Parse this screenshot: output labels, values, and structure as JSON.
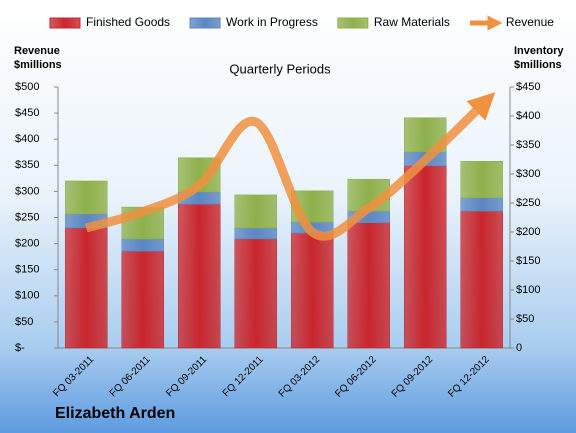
{
  "chart_data": {
    "type": "bar",
    "stacked": true,
    "title": "Quarterly Periods",
    "brand": "Elizabeth Arden",
    "ylabel": "Revenue $millions",
    "y2label": "Inventory $millions",
    "categories": [
      "FQ 03-2011",
      "FQ 06-2011",
      "FQ 09-2011",
      "FQ 12-2011",
      "FQ 03-2012",
      "FQ 06-2012",
      "FQ 09-2012",
      "FQ 12-2012"
    ],
    "series": [
      {
        "name": "Finished Goods",
        "color": "#c8262c",
        "axis": "y2",
        "values": [
          207,
          167,
          248,
          188,
          198,
          216,
          314,
          236
        ]
      },
      {
        "name": "Work in Progress",
        "color": "#5b86c2",
        "axis": "y2",
        "values": [
          24,
          21,
          21,
          19,
          19,
          20,
          24,
          23
        ]
      },
      {
        "name": "Raw Materials",
        "color": "#8eb04a",
        "axis": "y2",
        "values": [
          57,
          55,
          59,
          57,
          54,
          55,
          59,
          63
        ]
      },
      {
        "name": "Revenue",
        "color": "#f0913f",
        "axis": "y",
        "type": "line",
        "values": [
          230,
          261,
          312,
          433,
          222,
          268,
          360,
          465
        ]
      }
    ],
    "ylim": [
      0,
      500
    ],
    "yticks": [
      {
        "value": 0,
        "label": "$-"
      },
      {
        "value": 50,
        "label": "$50"
      },
      {
        "value": 100,
        "label": "$100"
      },
      {
        "value": 150,
        "label": "$150"
      },
      {
        "value": 200,
        "label": "$200"
      },
      {
        "value": 250,
        "label": "$250"
      },
      {
        "value": 300,
        "label": "$300"
      },
      {
        "value": 350,
        "label": "$350"
      },
      {
        "value": 400,
        "label": "$400"
      },
      {
        "value": 450,
        "label": "$450"
      },
      {
        "value": 500,
        "label": "$500"
      }
    ],
    "y2lim": [
      0,
      450
    ],
    "y2ticks": [
      0,
      {
        "value": 50,
        "label": "$50"
      },
      {
        "value": 100,
        "label": "$100"
      },
      {
        "value": 150,
        "label": "$150"
      },
      {
        "value": 200,
        "label": "$200"
      },
      {
        "value": 250,
        "label": "$250"
      },
      {
        "value": 300,
        "label": "$300"
      },
      {
        "value": 350,
        "label": "$350"
      },
      {
        "value": 400,
        "label": "$400"
      },
      {
        "value": 450,
        "label": "$450"
      }
    ],
    "legend": "top"
  }
}
